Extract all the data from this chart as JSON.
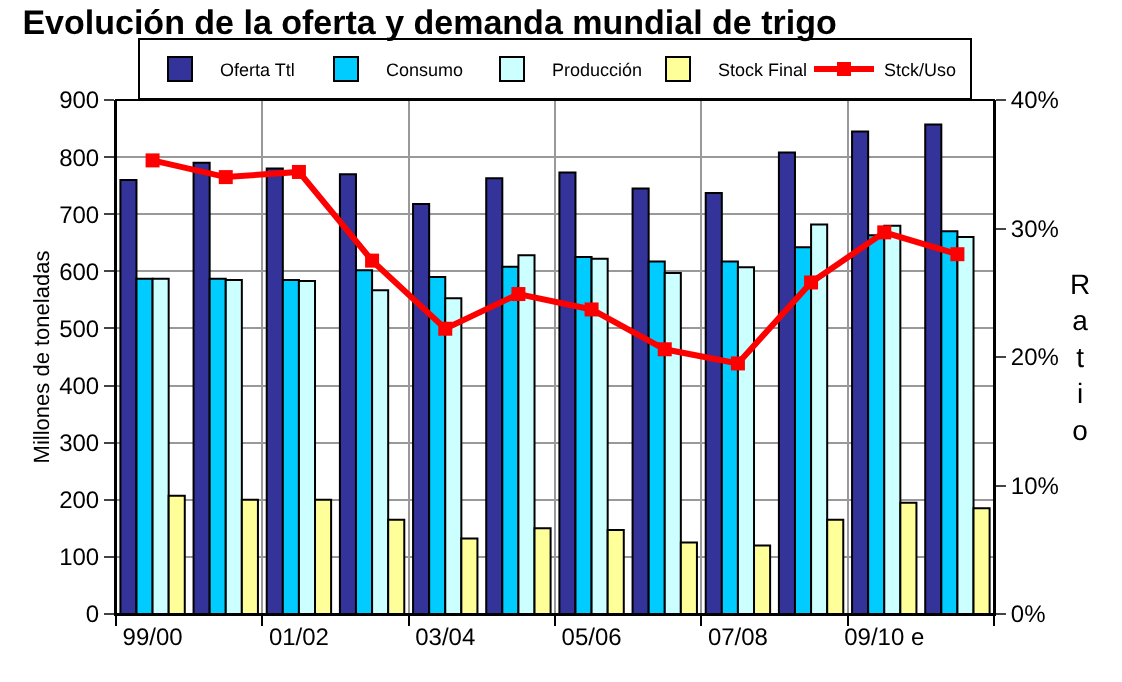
{
  "chart_data": {
    "type": "bar",
    "title": "Evolución de la oferta y demanda mundial de trigo",
    "ylabel": "Millones de toneladas",
    "y2label": "Ratio",
    "categories": [
      "99/00",
      null,
      "01/02",
      null,
      "03/04",
      null,
      "05/06",
      null,
      "07/08",
      null,
      "09/10 e",
      null
    ],
    "series": [
      {
        "name": "Oferta Ttl",
        "color": "#333399",
        "values": [
          760,
          790,
          780,
          770,
          718,
          763,
          773,
          745,
          737,
          808,
          845,
          857
        ]
      },
      {
        "name": "Consumo",
        "color": "#00ccff",
        "values": [
          587,
          587,
          585,
          602,
          590,
          608,
          625,
          617,
          617,
          642,
          663,
          670
        ]
      },
      {
        "name": "Producción",
        "color": "#ccffff",
        "values": [
          587,
          585,
          583,
          567,
          553,
          628,
          622,
          597,
          607,
          682,
          680,
          660
        ]
      },
      {
        "name": "Stock Final",
        "color": "#ffff99",
        "values": [
          207,
          200,
          200,
          165,
          132,
          150,
          147,
          125,
          120,
          165,
          195,
          185
        ]
      },
      {
        "name": "Stck/Uso",
        "type": "line",
        "axis": "y2",
        "color": "#ff0000",
        "marker": "square",
        "values": [
          35.3,
          34.0,
          34.4,
          27.5,
          22.2,
          24.9,
          23.7,
          20.6,
          19.5,
          25.8,
          29.7,
          28.0
        ]
      }
    ],
    "ylim": [
      0,
      900
    ],
    "yticks": [
      0,
      100,
      200,
      300,
      400,
      500,
      600,
      700,
      800,
      900
    ],
    "y2lim": [
      0,
      40
    ],
    "y2ticks": [
      {
        "value": 0,
        "label": "0%"
      },
      {
        "value": 10,
        "label": "10%"
      },
      {
        "value": 20,
        "label": "20%"
      },
      {
        "value": 30,
        "label": "30%"
      },
      {
        "value": 40,
        "label": "40%"
      }
    ],
    "grid": true,
    "legend": "top"
  }
}
